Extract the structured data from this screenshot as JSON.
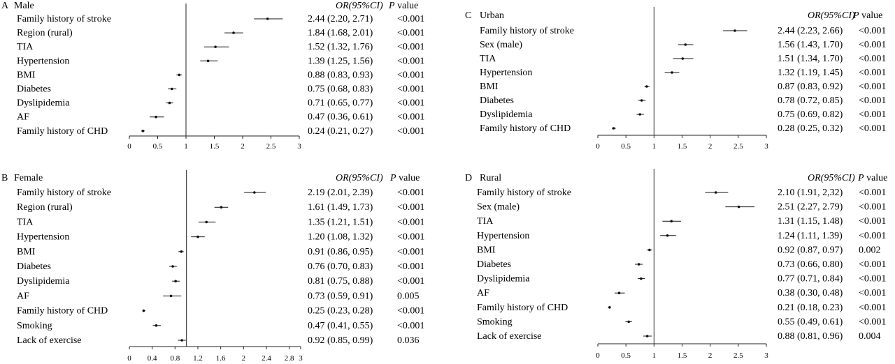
{
  "chart_data": [
    {
      "type": "forest",
      "panel": "A",
      "title": "Male",
      "header_or": "OR(95%CI)",
      "header_p_italic": "P",
      "header_p_rest": " value",
      "xticks": [
        "0",
        "0.5",
        "1",
        "1.5",
        "2",
        "2.5",
        "3"
      ],
      "xlim": [
        0,
        3
      ],
      "ref_line": 1,
      "rows": [
        {
          "label": "Family history of stroke",
          "or": 2.44,
          "lo": 2.2,
          "hi": 2.71,
          "text": "2.44 (2.20, 2.71)",
          "p": "<0.001"
        },
        {
          "label": "Region (rural)",
          "or": 1.84,
          "lo": 1.68,
          "hi": 2.01,
          "text": "1.84 (1.68, 2.01)",
          "p": "<0.001"
        },
        {
          "label": "TIA",
          "or": 1.52,
          "lo": 1.32,
          "hi": 1.76,
          "text": "1.52 (1.32, 1.76)",
          "p": "<0.001"
        },
        {
          "label": "Hypertension",
          "or": 1.39,
          "lo": 1.25,
          "hi": 1.56,
          "text": "1.39 (1.25, 1.56)",
          "p": "<0.001"
        },
        {
          "label": "BMI",
          "or": 0.88,
          "lo": 0.83,
          "hi": 0.93,
          "text": "0.88 (0.83, 0.93)",
          "p": "<0.001"
        },
        {
          "label": "Diabetes",
          "or": 0.75,
          "lo": 0.68,
          "hi": 0.83,
          "text": "0.75 (0.68, 0.83)",
          "p": "<0.001"
        },
        {
          "label": "Dyslipidemia",
          "or": 0.71,
          "lo": 0.65,
          "hi": 0.77,
          "text": "0.71 (0.65, 0.77)",
          "p": "<0.001"
        },
        {
          "label": "AF",
          "or": 0.47,
          "lo": 0.36,
          "hi": 0.61,
          "text": "0.47 (0.36, 0.61)",
          "p": "<0.001"
        },
        {
          "label": "Family history of CHD",
          "or": 0.24,
          "lo": 0.21,
          "hi": 0.27,
          "text": "0.24 (0.21, 0.27)",
          "p": "<0.001"
        }
      ]
    },
    {
      "type": "forest",
      "panel": "B",
      "title": "Female",
      "header_or": "OR(95%CI)",
      "header_p_italic": "P",
      "header_p_rest": " value",
      "xticks": [
        "0",
        "0.4",
        "0.8",
        "1.2",
        "1.6",
        "2",
        "2.4",
        "2.8",
        "3"
      ],
      "xlim": [
        0,
        3
      ],
      "ref_line": 1,
      "rows": [
        {
          "label": "Family history of stroke",
          "or": 2.19,
          "lo": 2.01,
          "hi": 2.39,
          "text": "2.19 (2.01, 2.39)",
          "p": "<0.001"
        },
        {
          "label": "Region (rural)",
          "or": 1.61,
          "lo": 1.49,
          "hi": 1.73,
          "text": "1.61 (1.49, 1.73)",
          "p": "<0.001"
        },
        {
          "label": "TIA",
          "or": 1.35,
          "lo": 1.21,
          "hi": 1.51,
          "text": "1.35 (1.21, 1.51)",
          "p": "<0.001"
        },
        {
          "label": "Hypertension",
          "or": 1.2,
          "lo": 1.08,
          "hi": 1.32,
          "text": "1.20 (1.08, 1.32)",
          "p": "<0.001"
        },
        {
          "label": "BMI",
          "or": 0.91,
          "lo": 0.86,
          "hi": 0.95,
          "text": "0.91 (0.86, 0.95)",
          "p": "<0.001"
        },
        {
          "label": "Diabetes",
          "or": 0.76,
          "lo": 0.7,
          "hi": 0.83,
          "text": "0.76 (0.70, 0.83)",
          "p": "<0.001"
        },
        {
          "label": "Dyslipidemia",
          "or": 0.81,
          "lo": 0.75,
          "hi": 0.88,
          "text": "0.81 (0.75, 0.88)",
          "p": "<0.001"
        },
        {
          "label": "AF",
          "or": 0.73,
          "lo": 0.59,
          "hi": 0.91,
          "text": "0.73 (0.59, 0.91)",
          "p": "0.005"
        },
        {
          "label": "Family history of CHD",
          "or": 0.25,
          "lo": 0.23,
          "hi": 0.28,
          "text": "0.25 (0.23, 0.28)",
          "p": "<0.001"
        },
        {
          "label": "Smoking",
          "or": 0.47,
          "lo": 0.41,
          "hi": 0.55,
          "text": "0.47 (0.41, 0.55)",
          "p": "<0.001"
        },
        {
          "label": "Lack of exercise",
          "or": 0.92,
          "lo": 0.85,
          "hi": 0.99,
          "text": "0.92 (0.85, 0.99)",
          "p": "0.036"
        }
      ]
    },
    {
      "type": "forest",
      "panel": "C",
      "title": "Urban",
      "header_or": "OR(95%CI)",
      "header_p_italic": "P",
      "header_p_rest": "  value",
      "xticks": [
        "0",
        "0.5",
        "1",
        "1.5",
        "2",
        "2.5",
        "3"
      ],
      "xlim": [
        0,
        3
      ],
      "ref_line": 1,
      "rows": [
        {
          "label": "Family history of stroke",
          "or": 2.44,
          "lo": 2.23,
          "hi": 2.66,
          "text": "2.44 (2.23, 2.66)",
          "p": "<0.001"
        },
        {
          "label": "Sex (male)",
          "or": 1.56,
          "lo": 1.43,
          "hi": 1.7,
          "text": "1.56 (1.43, 1.70)",
          "p": "<0.001"
        },
        {
          "label": "TIA",
          "or": 1.51,
          "lo": 1.34,
          "hi": 1.7,
          "text": "1.51 (1.34, 1.70)",
          "p": "<0.001"
        },
        {
          "label": "Hypertension",
          "or": 1.32,
          "lo": 1.19,
          "hi": 1.45,
          "text": "1.32 (1.19, 1.45)",
          "p": "<0.001"
        },
        {
          "label": "BMI",
          "or": 0.87,
          "lo": 0.83,
          "hi": 0.92,
          "text": "0.87 (0.83, 0.92)",
          "p": "<0.001"
        },
        {
          "label": "Diabetes",
          "or": 0.78,
          "lo": 0.72,
          "hi": 0.85,
          "text": "0.78 (0.72, 0.85)",
          "p": "<0.001"
        },
        {
          "label": "Dyslipidemia",
          "or": 0.75,
          "lo": 0.69,
          "hi": 0.82,
          "text": "0.75 (0.69, 0.82)",
          "p": "<0.001"
        },
        {
          "label": "Family history of CHD",
          "or": 0.28,
          "lo": 0.25,
          "hi": 0.32,
          "text": "0.28 (0.25, 0.32)",
          "p": "<0.001"
        }
      ]
    },
    {
      "type": "forest",
      "panel": "D",
      "title": "Rural",
      "header_or": "OR(95%CI)",
      "header_p_italic": "P",
      "header_p_rest": "  value",
      "xticks": [
        "0",
        "0.5",
        "1",
        "1.5",
        "2",
        "2.5",
        "3"
      ],
      "xlim": [
        0,
        3
      ],
      "ref_line": 1,
      "rows": [
        {
          "label": "Family history of stroke",
          "or": 2.1,
          "lo": 1.91,
          "hi": 2.32,
          "text": "2.10 (1.91, 2,32)",
          "p": "<0.001"
        },
        {
          "label": "Sex (male)",
          "or": 2.51,
          "lo": 2.27,
          "hi": 2.79,
          "text": "2.51 (2.27, 2.79)",
          "p": "<0.001"
        },
        {
          "label": "TIA",
          "or": 1.31,
          "lo": 1.15,
          "hi": 1.48,
          "text": "1.31 (1.15, 1.48)",
          "p": "<0.001"
        },
        {
          "label": "Hypertension",
          "or": 1.24,
          "lo": 1.11,
          "hi": 1.39,
          "text": "1.24 (1.11, 1.39)",
          "p": "<0.001"
        },
        {
          "label": "BMI",
          "or": 0.92,
          "lo": 0.87,
          "hi": 0.97,
          "text": "0.92 (0.87, 0.97)",
          "p": "0.002"
        },
        {
          "label": "Diabetes",
          "or": 0.73,
          "lo": 0.66,
          "hi": 0.8,
          "text": "0.73 (0.66, 0.80)",
          "p": "<0.001"
        },
        {
          "label": "Dyslipidemia",
          "or": 0.77,
          "lo": 0.71,
          "hi": 0.84,
          "text": "0.77 (0.71, 0.84)",
          "p": "<0.001"
        },
        {
          "label": "AF",
          "or": 0.38,
          "lo": 0.3,
          "hi": 0.48,
          "text": "0.38 (0.30, 0.48)",
          "p": "<0.001"
        },
        {
          "label": "Family history of CHD",
          "or": 0.21,
          "lo": 0.18,
          "hi": 0.23,
          "text": "0.21 (0.18, 0.23)",
          "p": "<0.001"
        },
        {
          "label": "Smoking",
          "or": 0.55,
          "lo": 0.49,
          "hi": 0.61,
          "text": "0.55 (0.49, 0.61)",
          "p": "<0.001"
        },
        {
          "label": "Lack of exercise",
          "or": 0.88,
          "lo": 0.81,
          "hi": 0.96,
          "text": "0.88 (0.81, 0.96)",
          "p": "0.004"
        }
      ]
    }
  ]
}
